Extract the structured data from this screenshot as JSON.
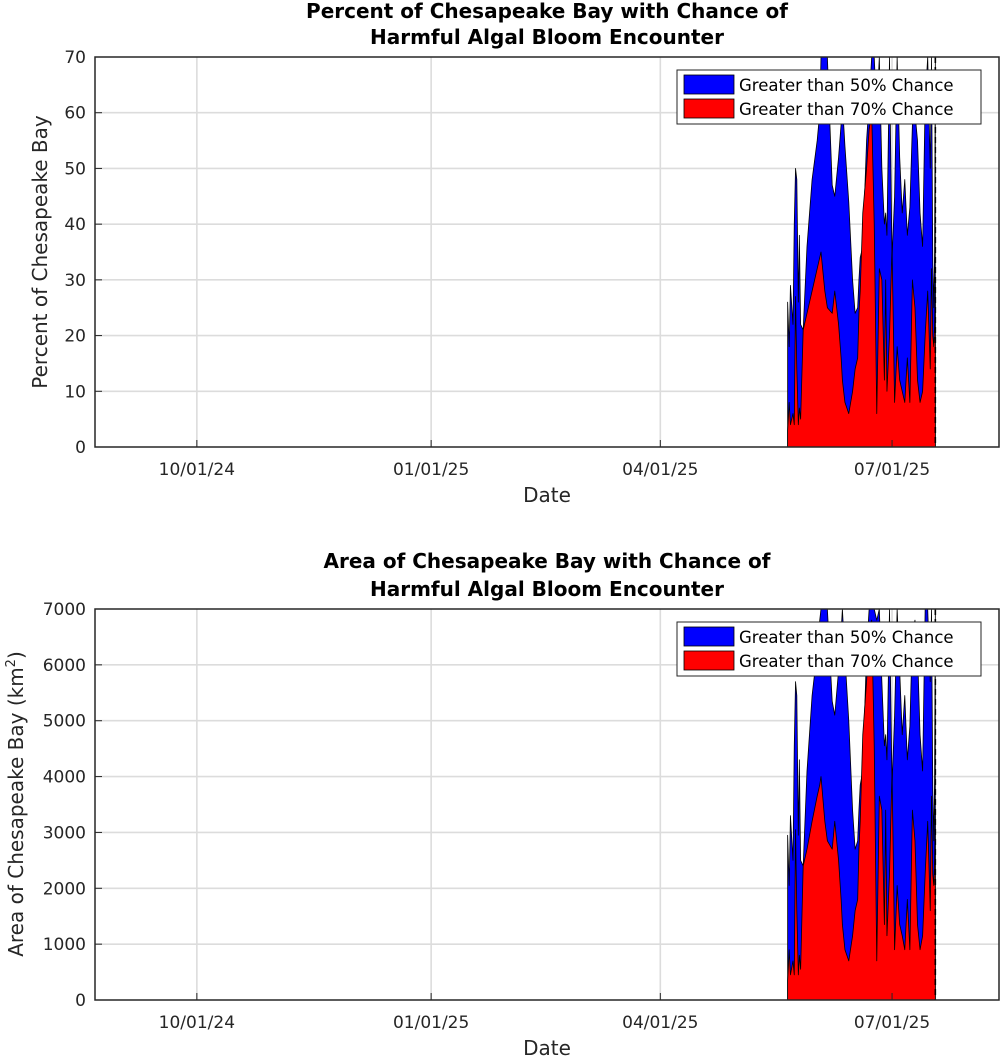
{
  "chart_data": [
    {
      "type": "area",
      "id": "percent",
      "title_lines": [
        "Percent of Chesapeake Bay with Chance of",
        "Harmful Algal Bloom Encounter"
      ],
      "xlabel": "Date",
      "ylabel": "Percent of Chesapeake Bay",
      "ylabel_sup": "",
      "ylabel_tail": "",
      "xlim": [
        -30,
        325
      ],
      "ylim": [
        0,
        70
      ],
      "yticks": [
        0,
        10,
        20,
        30,
        40,
        50,
        60,
        70
      ],
      "xtick_labels": [
        {
          "day": 10,
          "label": "10/01/24"
        },
        {
          "day": 102,
          "label": "01/01/25"
        },
        {
          "day": 192,
          "label": "04/01/25"
        },
        {
          "day": 283,
          "label": "07/01/25"
        }
      ],
      "grid": true,
      "legend_position": "top-right",
      "series": [
        {
          "name": "Greater than 50% Chance",
          "color": "#0000ff",
          "x": [
            242,
            242.6,
            243.1,
            244.1,
            244.6,
            245.1,
            245.6,
            246.2,
            246.6,
            247.1,
            248.1,
            249.6,
            251.6,
            253.6,
            254.6,
            255.1,
            256.6,
            257.6,
            259.5,
            260.5,
            262.0,
            263.0,
            263.5,
            264.5,
            266.0,
            267.5,
            268.5,
            269.5,
            270.0,
            270.5,
            271.5,
            273.0,
            274.0,
            275.0,
            276.0,
            277.0,
            278.0,
            279.0,
            280.0,
            280.5,
            281.0,
            282.0,
            283.0,
            284.0,
            285.0,
            286.0,
            287.0,
            288.0,
            289.0,
            290.0,
            291.0,
            292.0,
            293.0,
            294.0,
            295.0,
            296.0,
            297.0,
            298.0,
            298.5,
            299.0,
            299.4,
            299.7,
            300,
            300
          ],
          "values": [
            26,
            18,
            29,
            22,
            40,
            50,
            48,
            26,
            38,
            22,
            21,
            36,
            48,
            55,
            60,
            70,
            70,
            70,
            47,
            45,
            52,
            58,
            62,
            54,
            44,
            30,
            24,
            25,
            30,
            34,
            36,
            55,
            62,
            70,
            70,
            60,
            70,
            50,
            40,
            42,
            38,
            70,
            34,
            45,
            70,
            52,
            42,
            48,
            38,
            43,
            58,
            60,
            55,
            42,
            36,
            62,
            70,
            50,
            70,
            33,
            25,
            35,
            70,
            0
          ],
          "labels": [
            "time series (daily)"
          ]
        },
        {
          "name": "Greater than 70% Chance",
          "color": "#ff0000",
          "x": [
            242,
            242.6,
            243.1,
            244.1,
            244.6,
            245.1,
            245.6,
            246.2,
            246.6,
            247.1,
            248.1,
            249.6,
            251.6,
            253.6,
            254.6,
            255.1,
            256.6,
            257.6,
            259.5,
            260.5,
            262.0,
            263.0,
            263.5,
            264.5,
            266.0,
            267.5,
            268.5,
            269.5,
            270.0,
            270.5,
            271.5,
            273.0,
            274.0,
            275.0,
            276.0,
            277.0,
            278.0,
            279.0,
            280.0,
            280.5,
            281.0,
            282.0,
            283.0,
            284.0,
            285.0,
            286.0,
            287.0,
            288.0,
            289.0,
            290.0,
            291.0,
            292.0,
            293.0,
            294.0,
            295.0,
            296.0,
            297.0,
            298.0,
            298.5,
            299.0,
            299.4,
            299.7,
            300,
            300
          ],
          "values": [
            3,
            8,
            4,
            6,
            4,
            27,
            14,
            4,
            7,
            5,
            21,
            24,
            28,
            32,
            34,
            35,
            28,
            25,
            24,
            28,
            22,
            16,
            12,
            8,
            6,
            10,
            14,
            16,
            24,
            28,
            42,
            50,
            57,
            60,
            40,
            6,
            32,
            30,
            12,
            30,
            10,
            20,
            36,
            8,
            18,
            12,
            10,
            8,
            16,
            8,
            30,
            25,
            12,
            8,
            10,
            20,
            28,
            14,
            32,
            20,
            18,
            22,
            30,
            0
          ],
          "labels": [
            "time series (daily)"
          ]
        }
      ]
    },
    {
      "type": "area",
      "id": "area",
      "title_lines": [
        "Area of Chesapeake Bay with Chance of",
        "Harmful Algal Bloom Encounter"
      ],
      "xlabel": "Date",
      "ylabel": "Area of Chesapeake Bay (km",
      "ylabel_sup": "2",
      "ylabel_tail": ")",
      "xlim": [
        -30,
        325
      ],
      "ylim": [
        0,
        7000
      ],
      "yticks": [
        0,
        1000,
        2000,
        3000,
        4000,
        5000,
        6000,
        7000
      ],
      "xtick_labels": [
        {
          "day": 10,
          "label": "10/01/24"
        },
        {
          "day": 102,
          "label": "01/01/25"
        },
        {
          "day": 192,
          "label": "04/01/25"
        },
        {
          "day": 283,
          "label": "07/01/25"
        }
      ],
      "grid": true,
      "legend_position": "top-right",
      "series": [
        {
          "name": "Greater than 50% Chance",
          "color": "#0000ff",
          "x": [
            242,
            242.6,
            243.1,
            244.1,
            244.6,
            245.1,
            245.6,
            246.2,
            246.6,
            247.1,
            248.1,
            249.6,
            251.6,
            253.6,
            254.6,
            255.1,
            256.6,
            257.6,
            259.5,
            260.5,
            262.0,
            263.0,
            263.5,
            264.5,
            266.0,
            267.5,
            268.5,
            269.5,
            270.0,
            270.5,
            271.5,
            273.0,
            274.0,
            275.0,
            276.0,
            277.0,
            278.0,
            279.0,
            280.0,
            280.5,
            281.0,
            282.0,
            283.0,
            284.0,
            285.0,
            286.0,
            287.0,
            288.0,
            289.0,
            290.0,
            291.0,
            292.0,
            293.0,
            294.0,
            295.0,
            296.0,
            297.0,
            298.0,
            298.5,
            299.0,
            299.4,
            299.7,
            300,
            300
          ],
          "values": [
            2950,
            2050,
            3300,
            2500,
            4550,
            5700,
            5450,
            2950,
            4300,
            2500,
            2400,
            4100,
            5450,
            6250,
            6800,
            7000,
            7000,
            7000,
            5350,
            5100,
            5900,
            6600,
            7000,
            6150,
            5000,
            3400,
            2700,
            2850,
            3400,
            3850,
            4100,
            6250,
            7000,
            7000,
            7000,
            6800,
            7000,
            5700,
            4550,
            4750,
            4300,
            7000,
            3850,
            5100,
            7000,
            5900,
            4750,
            5450,
            4300,
            4900,
            6600,
            6800,
            6250,
            4750,
            4100,
            7000,
            7000,
            5700,
            7000,
            3750,
            2850,
            3950,
            7000,
            0
          ],
          "labels": [
            "time series (daily)"
          ]
        },
        {
          "name": "Greater than 70% Chance",
          "color": "#ff0000",
          "x": [
            242,
            242.6,
            243.1,
            244.1,
            244.6,
            245.1,
            245.6,
            246.2,
            246.6,
            247.1,
            248.1,
            249.6,
            251.6,
            253.6,
            254.6,
            255.1,
            256.6,
            257.6,
            259.5,
            260.5,
            262.0,
            263.0,
            263.5,
            264.5,
            266.0,
            267.5,
            268.5,
            269.5,
            270.0,
            270.5,
            271.5,
            273.0,
            274.0,
            275.0,
            276.0,
            277.0,
            278.0,
            279.0,
            280.0,
            280.5,
            281.0,
            282.0,
            283.0,
            284.0,
            285.0,
            286.0,
            287.0,
            288.0,
            289.0,
            290.0,
            291.0,
            292.0,
            293.0,
            294.0,
            295.0,
            296.0,
            297.0,
            298.0,
            298.5,
            299.0,
            299.4,
            299.7,
            300,
            300
          ],
          "values": [
            350,
            900,
            450,
            700,
            450,
            3050,
            1600,
            450,
            800,
            550,
            2400,
            2700,
            3200,
            3650,
            3850,
            4000,
            3200,
            2850,
            2700,
            3200,
            2500,
            1800,
            1350,
            900,
            700,
            1150,
            1600,
            1800,
            2700,
            3200,
            4750,
            5700,
            6450,
            6800,
            4550,
            700,
            3650,
            3400,
            1350,
            3400,
            1150,
            2250,
            4100,
            900,
            2050,
            1350,
            1150,
            900,
            1800,
            900,
            3400,
            2850,
            1350,
            900,
            1150,
            2250,
            3200,
            1600,
            3650,
            2250,
            2050,
            2500,
            3400,
            0
          ],
          "labels": [
            "time series (daily)"
          ]
        }
      ]
    }
  ]
}
